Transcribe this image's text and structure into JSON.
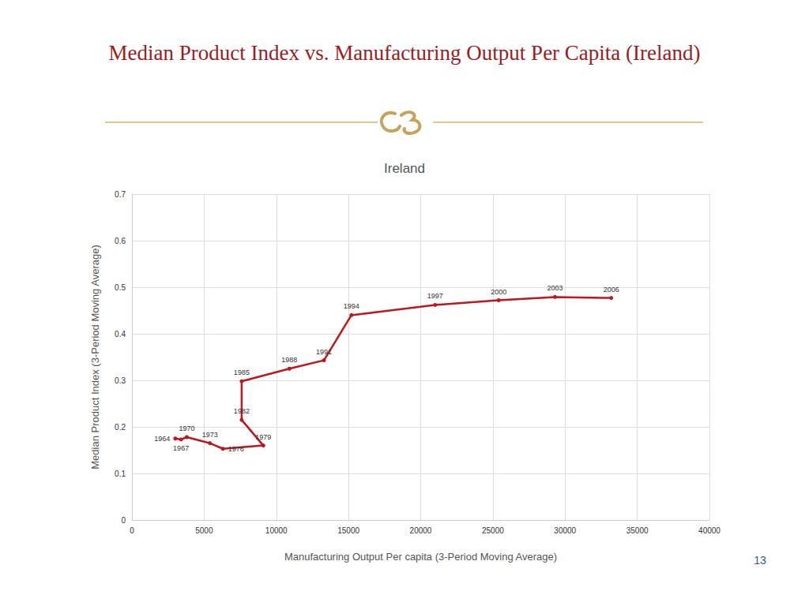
{
  "slide": {
    "title": "Median Product Index vs. Manufacturing Output Per Capita (Ireland)",
    "page_number": 13
  },
  "chart_data": {
    "type": "line",
    "title": "Ireland",
    "x_label": "Manufacturing Output Per capita (3-Period Moving Average)",
    "y_label": "Median Product Index (3-Period Moving Average)",
    "x": [
      3000,
      3400,
      3800,
      5400,
      6300,
      9100,
      7600,
      7600,
      10900,
      13300,
      15200,
      21000,
      25400,
      29300,
      33200
    ],
    "values": [
      0.175,
      0.173,
      0.178,
      0.165,
      0.153,
      0.16,
      0.215,
      0.298,
      0.325,
      0.343,
      0.44,
      0.462,
      0.472,
      0.479,
      0.477
    ],
    "point_labels": [
      "1964",
      "1967",
      "1970",
      "1973",
      "1976",
      "1979",
      "1982",
      "1985",
      "1988",
      "1991",
      "1994",
      "1997",
      "2000",
      "2003",
      "2006"
    ],
    "color": "#c0161d",
    "marker": "circle",
    "xlim": [
      0,
      40000
    ],
    "xticks": [
      0,
      5000,
      10000,
      15000,
      20000,
      25000,
      30000,
      35000,
      40000
    ],
    "ylim": [
      0,
      0.7
    ],
    "yticks": [
      0,
      0.1,
      0.2,
      0.3,
      0.4,
      0.5,
      0.6,
      0.7
    ],
    "grid": true
  }
}
